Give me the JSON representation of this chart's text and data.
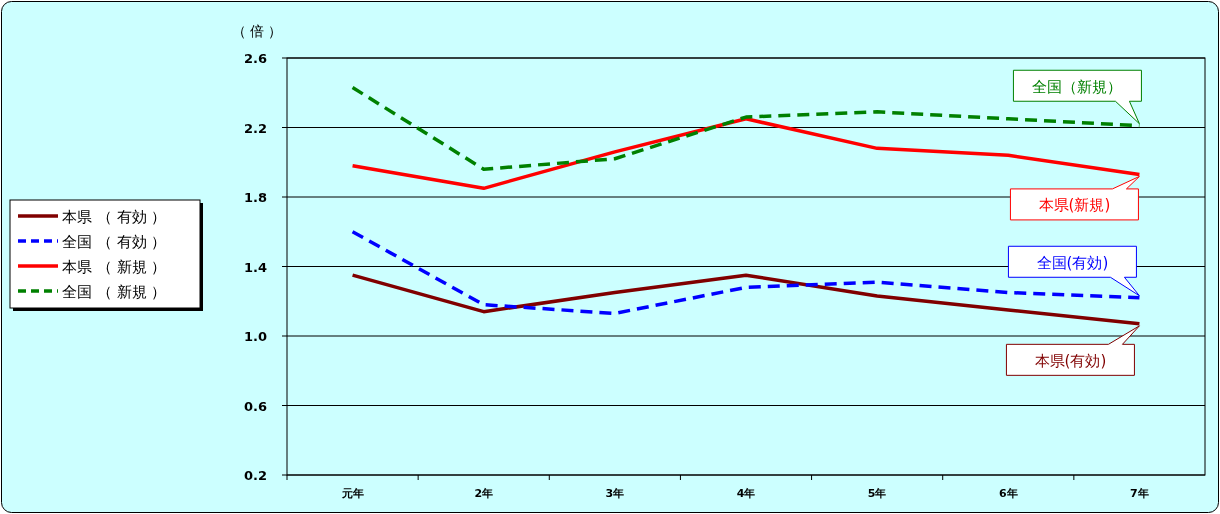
{
  "chart_data": {
    "type": "line",
    "ylabel": "（ 倍 ）",
    "categories": [
      "元年",
      "2年",
      "3年",
      "4年",
      "5年",
      "6年",
      "7年"
    ],
    "ylim": [
      0.2,
      2.6
    ],
    "yticks": [
      {
        "value": 0.2,
        "label": "0.2"
      },
      {
        "value": 0.6,
        "label": "0.6"
      },
      {
        "value": 1.0,
        "label": "1.0"
      },
      {
        "value": 1.4,
        "label": "1.4"
      },
      {
        "value": 1.8,
        "label": "1.8"
      },
      {
        "value": 2.2,
        "label": "2.2"
      },
      {
        "value": 2.6,
        "label": "2.6"
      }
    ],
    "grid": "y",
    "legend": "left",
    "marker": "none",
    "series": [
      {
        "name": "本県 （ 有効 ）",
        "color": "#800000",
        "line_style": "solid",
        "values": [
          1.35,
          1.14,
          1.25,
          1.35,
          1.23,
          1.15,
          1.07
        ]
      },
      {
        "name": "全国 （ 有効 ）",
        "color": "#0000ff",
        "line_style": "dashed",
        "values": [
          1.6,
          1.18,
          1.13,
          1.28,
          1.31,
          1.25,
          1.22
        ]
      },
      {
        "name": "本県 （ 新規 ）",
        "color": "#ff0000",
        "line_style": "solid",
        "values": [
          1.98,
          1.85,
          2.06,
          2.25,
          2.08,
          2.04,
          1.93
        ]
      },
      {
        "name": "全国 （ 新規 ）",
        "color": "#008000",
        "line_style": "dashed",
        "values": [
          2.43,
          1.96,
          2.02,
          2.26,
          2.29,
          2.25,
          2.21
        ]
      }
    ],
    "annotations": [
      {
        "text": "全国（新規）",
        "x": "7年",
        "y": 2.21
      },
      {
        "text": "本県(新規)",
        "x": "7年",
        "y": 1.93
      },
      {
        "text": "全国(有効)",
        "x": "7年",
        "y": 1.22
      },
      {
        "text": "本県(有効)",
        "x": "7年",
        "y": 1.07
      }
    ]
  }
}
